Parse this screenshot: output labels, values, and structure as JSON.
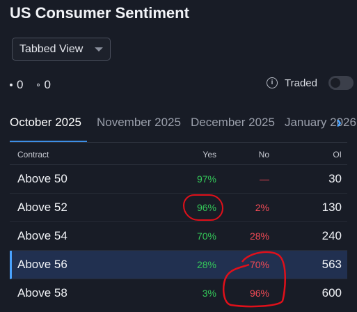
{
  "title": "US Consumer Sentiment",
  "view_select": {
    "value": "Tabbed View"
  },
  "counts": {
    "solid": "0",
    "hollow": "0"
  },
  "traded": {
    "label": "Traded",
    "info_icon": "i",
    "toggle_on": false
  },
  "tabs": [
    {
      "label": "October 2025",
      "active": true
    },
    {
      "label": "November 2025",
      "active": false
    },
    {
      "label": "December 2025",
      "active": false
    },
    {
      "label": "January 2026",
      "active": false
    }
  ],
  "next_icon": "›",
  "table": {
    "headers": {
      "contract": "Contract",
      "yes": "Yes",
      "no": "No",
      "oi": "OI"
    },
    "rows": [
      {
        "contract": "Above 50",
        "yes": "97%",
        "no": "—",
        "oi": "30"
      },
      {
        "contract": "Above 52",
        "yes": "96%",
        "no": "2%",
        "oi": "130"
      },
      {
        "contract": "Above 54",
        "yes": "70%",
        "no": "28%",
        "oi": "240"
      },
      {
        "contract": "Above 56",
        "yes": "28%",
        "no": "70%",
        "oi": "563",
        "selected": true
      },
      {
        "contract": "Above 58",
        "yes": "3%",
        "no": "96%",
        "oi": "600"
      }
    ]
  },
  "colors": {
    "accent": "#3d8ee6",
    "yes": "#34c759",
    "no": "#f04a55",
    "annotation": "#e0101a"
  }
}
